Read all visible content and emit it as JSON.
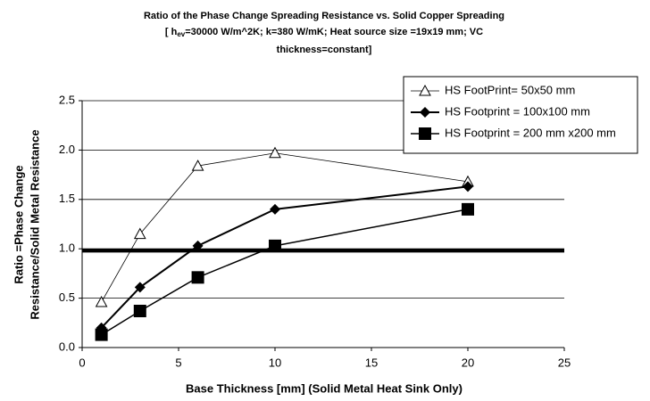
{
  "chart_data": {
    "type": "line",
    "title": "Ratio of the Phase Change Spreading Resistance vs. Solid Copper Spreading",
    "subtitle": {
      "prefix": "[ h",
      "subscript": "ev",
      "line1_rest": "=30000 W/m^2K; k=380 W/mK;  Heat source size =19x19 mm;  VC",
      "line2": "thickness=constant]"
    },
    "xlabel": "Base Thickness [mm] (Solid Metal Heat Sink Only)",
    "ylabel": [
      "Ratio =Phase Change",
      "Resistance/Solid Metal Resistance"
    ],
    "x": [
      1,
      3,
      6,
      10,
      20
    ],
    "series": [
      {
        "name": "HS FootPrint= 50x50 mm",
        "color": "#000000",
        "marker": "triangle-open",
        "width": 0.8,
        "values": [
          0.46,
          1.15,
          1.84,
          1.97,
          1.68
        ]
      },
      {
        "name": "HS Footprint = 100x100 mm",
        "color": "#000000",
        "marker": "diamond",
        "width": 2,
        "values": [
          0.2,
          0.61,
          1.03,
          1.4,
          1.63
        ]
      },
      {
        "name": "HS Footprint = 200 mm x200 mm",
        "color": "#000000",
        "marker": "square",
        "width": 1.5,
        "values": [
          0.13,
          0.37,
          0.71,
          1.03,
          1.4
        ]
      }
    ],
    "reference_line": 0.98,
    "xlim": [
      0,
      25
    ],
    "xticks": [
      0,
      5,
      10,
      15,
      20,
      25
    ],
    "ylim": [
      0,
      2.5
    ],
    "yticks": [
      {
        "value": 0,
        "label": "0.0"
      },
      {
        "value": 0.5,
        "label": "0.5"
      },
      {
        "value": 1,
        "label": "1.0"
      },
      {
        "value": 1.5,
        "label": "1.5"
      },
      {
        "value": 2,
        "label": "2.0"
      },
      {
        "value": 2.5,
        "label": "2.5"
      }
    ],
    "grid": true,
    "legend": "upper right"
  }
}
